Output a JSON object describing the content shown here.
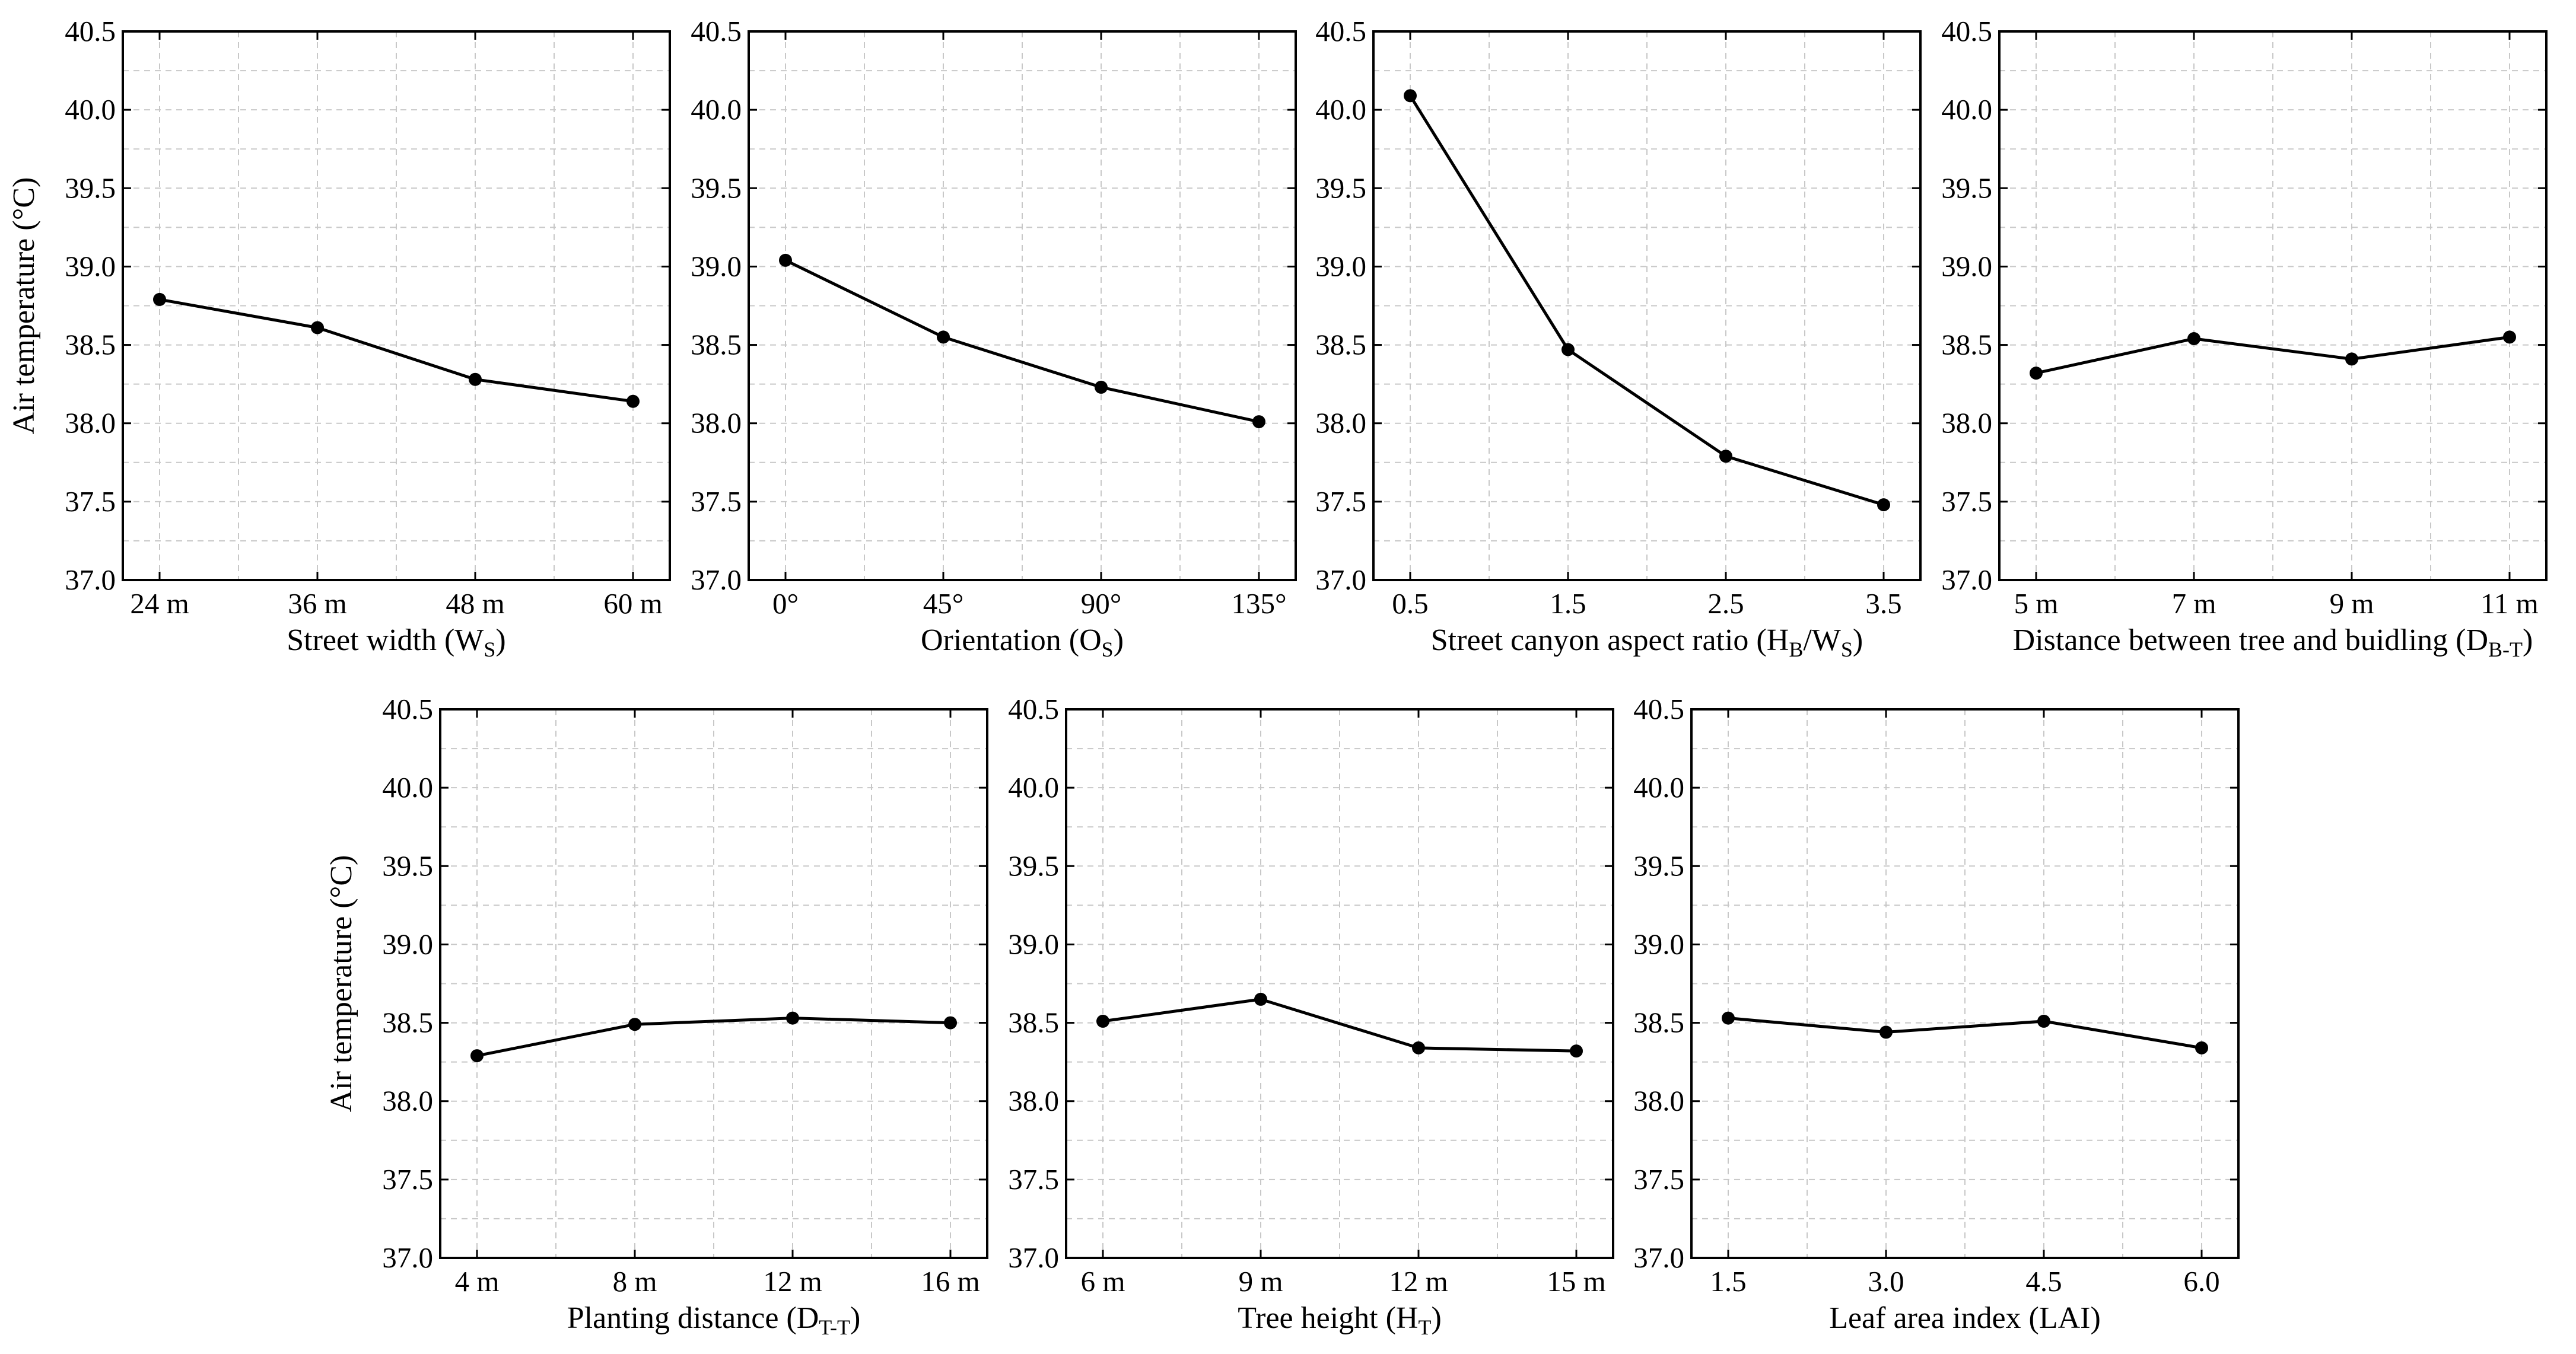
{
  "figure": {
    "y_axis_label": "Air temperature (°C)",
    "colors": {
      "line": "#000000",
      "grid": "#c8c8c8",
      "frame": "#000000"
    }
  },
  "chart_data": [
    {
      "type": "line",
      "title": "",
      "xlabel": "Street width (W",
      "xlabel_sub": "S",
      "xlabel_end": ")",
      "ylabel": "Air temperature (°C)",
      "categories": [
        "24 m",
        "36 m",
        "48 m",
        "60 m"
      ],
      "values": [
        38.79,
        38.61,
        38.28,
        38.14
      ],
      "ylim": [
        37.0,
        40.5
      ],
      "yticks": [
        "37.0",
        "37.5",
        "38.0",
        "38.5",
        "39.0",
        "39.5",
        "40.0",
        "40.5"
      ],
      "grid": true
    },
    {
      "type": "line",
      "title": "",
      "xlabel": "Orientation (O",
      "xlabel_sub": "S",
      "xlabel_end": ")",
      "ylabel": "",
      "categories": [
        "0°",
        "45°",
        "90°",
        "135°"
      ],
      "values": [
        39.04,
        38.55,
        38.23,
        38.01
      ],
      "ylim": [
        37.0,
        40.5
      ],
      "yticks": [
        "37.0",
        "37.5",
        "38.0",
        "38.5",
        "39.0",
        "39.5",
        "40.0",
        "40.5"
      ],
      "grid": true
    },
    {
      "type": "line",
      "title": "",
      "xlabel": "Street canyon aspect ratio (H",
      "xlabel_sub": "B",
      "xlabel_mid": "/W",
      "xlabel_sub2": "S",
      "xlabel_end": ")",
      "ylabel": "",
      "categories": [
        "0.5",
        "1.5",
        "2.5",
        "3.5"
      ],
      "values": [
        40.09,
        38.47,
        37.79,
        37.48
      ],
      "ylim": [
        37.0,
        40.5
      ],
      "yticks": [
        "37.0",
        "37.5",
        "38.0",
        "38.5",
        "39.0",
        "39.5",
        "40.0",
        "40.5"
      ],
      "grid": true
    },
    {
      "type": "line",
      "title": "",
      "xlabel": "Distance between tree and buidling (D",
      "xlabel_sub": "B-T",
      "xlabel_end": ")",
      "ylabel": "",
      "categories": [
        "5 m",
        "7 m",
        "9 m",
        "11 m"
      ],
      "values": [
        38.32,
        38.54,
        38.41,
        38.55
      ],
      "ylim": [
        37.0,
        40.5
      ],
      "yticks": [
        "37.0",
        "37.5",
        "38.0",
        "38.5",
        "39.0",
        "39.5",
        "40.0",
        "40.5"
      ],
      "grid": true
    },
    {
      "type": "line",
      "title": "",
      "xlabel": "Planting distance (D",
      "xlabel_sub": "T-T",
      "xlabel_end": ")",
      "ylabel": "Air temperature (°C)",
      "categories": [
        "4 m",
        "8 m",
        "12 m",
        "16 m"
      ],
      "values": [
        38.29,
        38.49,
        38.53,
        38.5
      ],
      "ylim": [
        37.0,
        40.5
      ],
      "yticks": [
        "37.0",
        "37.5",
        "38.0",
        "38.5",
        "39.0",
        "39.5",
        "40.0",
        "40.5"
      ],
      "grid": true
    },
    {
      "type": "line",
      "title": "",
      "xlabel": "Tree height (H",
      "xlabel_sub": "T",
      "xlabel_end": ")",
      "ylabel": "",
      "categories": [
        "6 m",
        "9 m",
        "12 m",
        "15 m"
      ],
      "values": [
        38.51,
        38.65,
        38.34,
        38.32
      ],
      "ylim": [
        37.0,
        40.5
      ],
      "yticks": [
        "37.0",
        "37.5",
        "38.0",
        "38.5",
        "39.0",
        "39.5",
        "40.0",
        "40.5"
      ],
      "grid": true
    },
    {
      "type": "line",
      "title": "",
      "xlabel": "Leaf area index (LAI)",
      "xlabel_sub": "",
      "xlabel_end": "",
      "ylabel": "",
      "categories": [
        "1.5",
        "3.0",
        "4.5",
        "6.0"
      ],
      "values": [
        38.53,
        38.44,
        38.51,
        38.34
      ],
      "ylim": [
        37.0,
        40.5
      ],
      "yticks": [
        "37.0",
        "37.5",
        "38.0",
        "38.5",
        "39.0",
        "39.5",
        "40.0",
        "40.5"
      ],
      "grid": true
    }
  ]
}
